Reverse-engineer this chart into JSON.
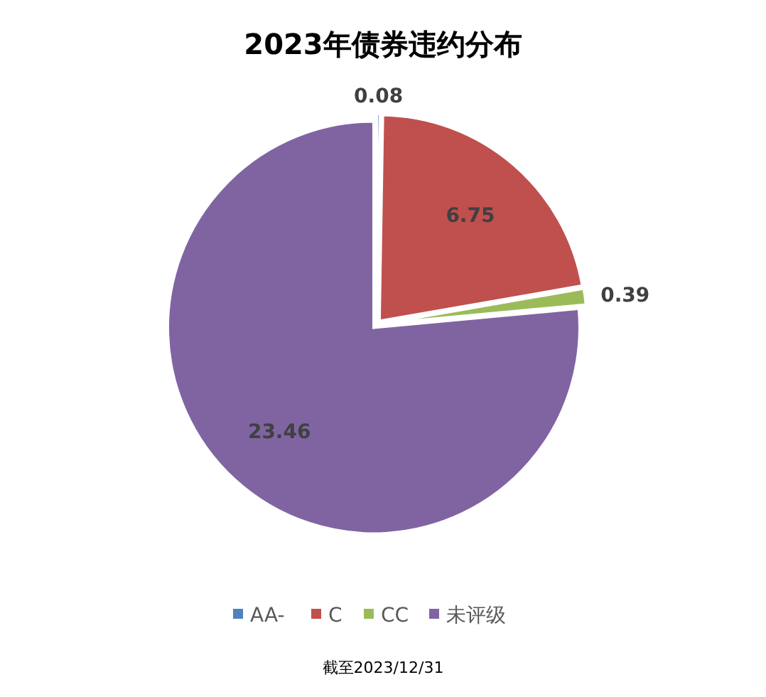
{
  "chart_data": {
    "type": "pie",
    "title": "2023年债券违约分布",
    "categories": [
      "AA-",
      "C",
      "CC",
      "未评级"
    ],
    "values": [
      0.08,
      6.75,
      0.39,
      23.46
    ],
    "colors": [
      "#4f81bd",
      "#c0504d",
      "#9bbb59",
      "#8064a2"
    ],
    "data_labels": true,
    "legend": "bottom",
    "annotations": [
      "截至2023/12/31"
    ]
  }
}
